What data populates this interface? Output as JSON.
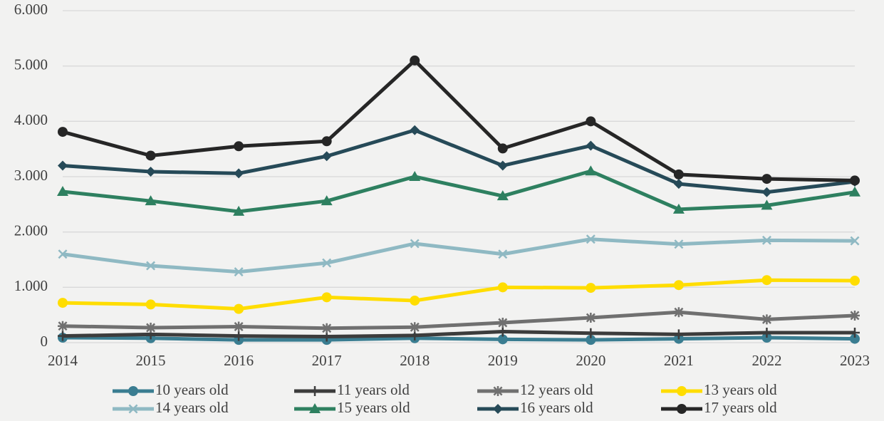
{
  "chart_data": {
    "type": "line",
    "categories": [
      "2014",
      "2015",
      "2016",
      "2017",
      "2018",
      "2019",
      "2020",
      "2021",
      "2022",
      "2023"
    ],
    "series": [
      {
        "name": "10 years old",
        "color": "#3a7d91",
        "marker": "circle",
        "values": [
          90,
          80,
          50,
          50,
          80,
          60,
          50,
          70,
          90,
          70
        ]
      },
      {
        "name": "11 years old",
        "color": "#3c3c3c",
        "marker": "plus",
        "values": [
          120,
          150,
          120,
          110,
          130,
          200,
          170,
          150,
          180,
          180
        ]
      },
      {
        "name": "12 years old",
        "color": "#707070",
        "marker": "asterisk",
        "values": [
          300,
          270,
          290,
          260,
          280,
          360,
          450,
          550,
          420,
          490
        ]
      },
      {
        "name": "13 years old",
        "color": "#ffdd00",
        "marker": "circle",
        "values": [
          720,
          690,
          610,
          820,
          760,
          1000,
          990,
          1040,
          1130,
          1120
        ]
      },
      {
        "name": "14 years old",
        "color": "#8fb9c3",
        "marker": "x",
        "values": [
          1600,
          1390,
          1280,
          1440,
          1790,
          1600,
          1870,
          1780,
          1850,
          1840
        ]
      },
      {
        "name": "15 years old",
        "color": "#2e8060",
        "marker": "triangle",
        "values": [
          2730,
          2560,
          2370,
          2560,
          3000,
          2650,
          3100,
          2410,
          2480,
          2720
        ]
      },
      {
        "name": "16 years old",
        "color": "#264a58",
        "marker": "diamond",
        "values": [
          3200,
          3090,
          3060,
          3370,
          3840,
          3200,
          3560,
          2870,
          2720,
          2910
        ]
      },
      {
        "name": "17 years old",
        "color": "#262626",
        "marker": "circle",
        "values": [
          3810,
          3380,
          3550,
          3640,
          5100,
          3510,
          4000,
          3040,
          2960,
          2930
        ]
      }
    ],
    "ylim": [
      0,
      6000
    ],
    "yticks": [
      0,
      {
        "value": 1000,
        "label": "1.000"
      },
      {
        "value": 2000,
        "label": "2.000"
      },
      {
        "value": 3000,
        "label": "3.000"
      },
      {
        "value": 4000,
        "label": "4.000"
      },
      {
        "value": 5000,
        "label": "5.000"
      },
      {
        "value": 6000,
        "label": "6.000"
      }
    ],
    "grid": true
  }
}
